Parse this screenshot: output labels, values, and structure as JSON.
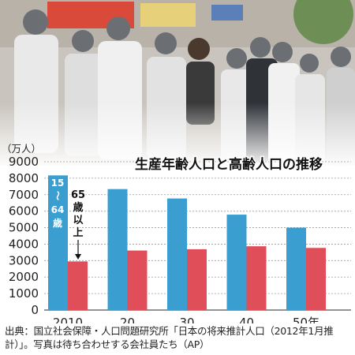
{
  "chart_data": {
    "type": "bar",
    "title": "生産年齢人口と高齢人口の推移",
    "unit_label": "（万人）",
    "categories": [
      "2010",
      "20",
      "30",
      "40",
      "50年"
    ],
    "y_ticks": [
      "0",
      "1000",
      "2000",
      "3000",
      "4000",
      "5000",
      "6000",
      "7000",
      "8000",
      "9000"
    ],
    "ylim": [
      0,
      9000
    ],
    "grid": true,
    "series": [
      {
        "name": "15〜64歳",
        "color": "#3a9fd0",
        "values": [
          8170,
          7340,
          6770,
          5790,
          5000
        ]
      },
      {
        "name": "65歳以上",
        "color": "#e04e5a",
        "values": [
          2950,
          3610,
          3690,
          3870,
          3770
        ]
      }
    ]
  },
  "legend_labels": {
    "working_age": [
      "15",
      "〜",
      "64",
      "歳"
    ],
    "elderly": [
      "65",
      "歳",
      "以",
      "上"
    ]
  },
  "caption": "出典：国立社会保障・人口問題研究所「日本の将来推計人口（2012年1月推計）」。写真は待ち合わせする会社員たち（AP）"
}
